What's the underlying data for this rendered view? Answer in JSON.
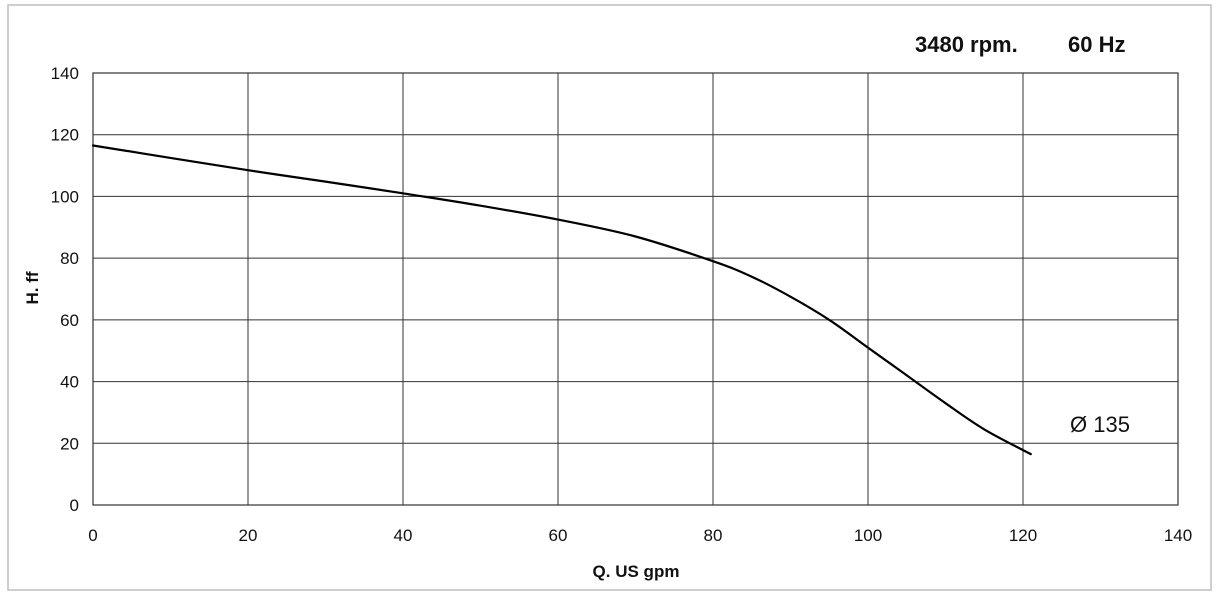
{
  "chart_data": {
    "type": "line",
    "header": {
      "speed": "3480 rpm.",
      "frequency": "60 Hz"
    },
    "xlabel": "Q.  US gpm",
    "ylabel": "H.  ff",
    "xlim": [
      0,
      140
    ],
    "ylim": [
      0,
      140
    ],
    "xticks": [
      0,
      20,
      40,
      60,
      80,
      100,
      120,
      140
    ],
    "yticks": [
      0,
      20,
      40,
      60,
      80,
      100,
      120,
      140
    ],
    "grid": true,
    "series": [
      {
        "name": "Ø 135",
        "x": [
          0,
          10,
          20,
          30,
          40,
          50,
          60,
          70,
          80,
          85,
          90,
          95,
          100,
          105,
          110,
          115,
          121
        ],
        "y": [
          116.5,
          112.5,
          108.5,
          104.8,
          101,
          97,
          92.5,
          87,
          79,
          74,
          67.5,
          60,
          51,
          42,
          33,
          24.5,
          16.5
        ]
      }
    ],
    "colors": {
      "line": "#000000",
      "grid": "#333333",
      "frame": "#bdbdbd"
    }
  }
}
